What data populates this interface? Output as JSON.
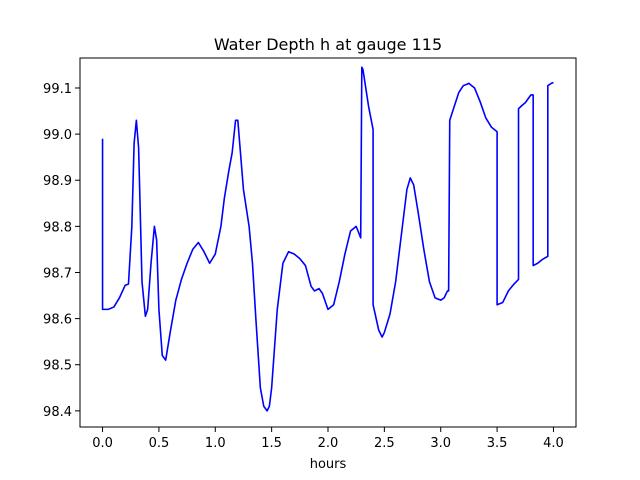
{
  "chart_data": {
    "type": "line",
    "title": "Water Depth h at gauge 115",
    "xlabel": "hours",
    "ylabel": "",
    "xlim": [
      -0.2,
      4.2
    ],
    "ylim": [
      98.365,
      99.165
    ],
    "xticks": [
      "0.0",
      "0.5",
      "1.0",
      "1.5",
      "2.0",
      "2.5",
      "3.0",
      "3.5",
      "4.0"
    ],
    "yticks": [
      "98.4",
      "98.5",
      "98.6",
      "98.7",
      "98.8",
      "98.9",
      "99.0",
      "99.1"
    ],
    "grid": false,
    "line_color": "#0000ff",
    "series": [
      {
        "x": [
          0.0,
          0.0,
          0.05,
          0.1,
          0.15,
          0.2,
          0.23,
          0.26,
          0.28,
          0.3,
          0.32,
          0.35,
          0.38,
          0.4,
          0.43,
          0.46,
          0.48,
          0.5,
          0.53,
          0.56,
          0.6,
          0.65,
          0.7,
          0.75,
          0.8,
          0.85,
          0.9,
          0.95,
          1.0,
          1.05,
          1.08,
          1.12,
          1.15,
          1.18,
          1.2,
          1.22,
          1.25,
          1.3,
          1.33,
          1.36,
          1.4,
          1.43,
          1.46,
          1.48,
          1.5,
          1.55,
          1.6,
          1.65,
          1.7,
          1.75,
          1.8,
          1.85,
          1.88,
          1.92,
          1.95,
          2.0,
          2.05,
          2.1,
          2.15,
          2.2,
          2.25,
          2.29,
          2.3,
          2.31,
          2.36,
          2.4,
          2.4,
          2.45,
          2.48,
          2.5,
          2.55,
          2.6,
          2.65,
          2.7,
          2.73,
          2.76,
          2.8,
          2.85,
          2.9,
          2.95,
          3.0,
          3.03,
          3.06,
          3.07,
          3.08,
          3.12,
          3.16,
          3.2,
          3.25,
          3.3,
          3.35,
          3.4,
          3.45,
          3.5,
          3.5,
          3.55,
          3.6,
          3.65,
          3.69,
          3.69,
          3.72,
          3.75,
          3.8,
          3.82,
          3.82,
          3.86,
          3.9,
          3.95,
          3.95,
          3.98,
          4.0
        ],
        "y": [
          98.99,
          98.62,
          98.62,
          98.625,
          98.645,
          98.672,
          98.675,
          98.8,
          98.98,
          99.03,
          98.97,
          98.68,
          98.605,
          98.62,
          98.72,
          98.8,
          98.77,
          98.62,
          98.52,
          98.51,
          98.57,
          98.64,
          98.685,
          98.72,
          98.75,
          98.765,
          98.745,
          98.72,
          98.74,
          98.8,
          98.86,
          98.92,
          98.96,
          99.03,
          99.03,
          98.97,
          98.88,
          98.8,
          98.72,
          98.6,
          98.45,
          98.41,
          98.4,
          98.41,
          98.45,
          98.62,
          98.72,
          98.745,
          98.74,
          98.73,
          98.715,
          98.67,
          98.66,
          98.665,
          98.655,
          98.62,
          98.63,
          98.68,
          98.74,
          98.79,
          98.8,
          98.775,
          99.145,
          99.14,
          99.06,
          99.01,
          98.63,
          98.575,
          98.56,
          98.57,
          98.61,
          98.68,
          98.78,
          98.88,
          98.905,
          98.89,
          98.83,
          98.75,
          98.68,
          98.645,
          98.64,
          98.645,
          98.66,
          98.66,
          99.03,
          99.06,
          99.09,
          99.105,
          99.11,
          99.1,
          99.07,
          99.035,
          99.015,
          99.005,
          98.63,
          98.635,
          98.66,
          98.675,
          98.685,
          99.055,
          99.062,
          99.068,
          99.085,
          99.085,
          98.715,
          98.72,
          98.728,
          98.735,
          99.105,
          99.11,
          99.112
        ]
      }
    ]
  }
}
